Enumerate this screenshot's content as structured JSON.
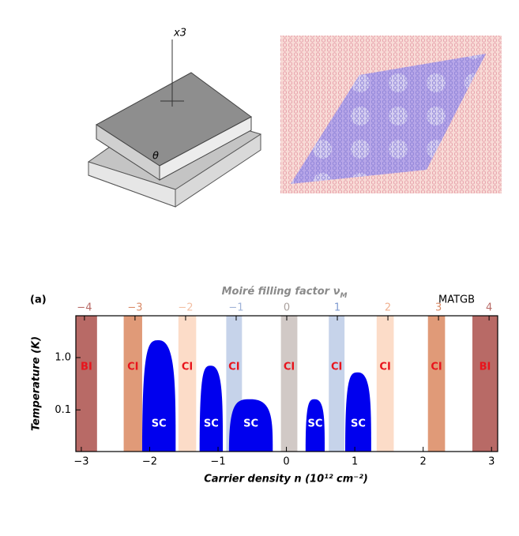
{
  "figure": {
    "axis_label": "x3",
    "angle_label": "θ"
  },
  "chart_data": {
    "type": "phase",
    "panel_label": "(a)",
    "corner_label": "MATGB",
    "top_axis_label": "Moiré filling factor ν",
    "top_axis_label_sub": "M",
    "x_label": "Carrier density n (10¹² cm⁻²)",
    "y_label": "Temperature (K)",
    "xlim": [
      -3.08,
      3.09
    ],
    "xticks": [
      {
        "value": -3,
        "label": "−3"
      },
      {
        "value": -2,
        "label": "−2"
      },
      {
        "value": -1,
        "label": "−1"
      },
      0,
      1,
      2,
      3
    ],
    "x2lim": [
      -4.17,
      4.17
    ],
    "x2ticks": [
      {
        "value": -4,
        "label": "−4"
      },
      {
        "value": -3,
        "label": "−3"
      },
      {
        "value": -2,
        "label": "−2"
      },
      {
        "value": -1,
        "label": "−1"
      },
      0,
      1,
      2,
      3,
      4
    ],
    "x2tick_colors": [
      "#b86a66",
      "#d98a66",
      "#f3bfa3",
      "#9fb3d8",
      "#a9a09c",
      "#7f9bd0",
      "#f0b08f",
      "#d98a66",
      "#b86a66"
    ],
    "ylim": [
      0.016,
      6.3
    ],
    "log_y": true,
    "yticks": [
      {
        "value": 1,
        "label": "1.0"
      },
      0.1
    ],
    "label_color": "#e8141c",
    "bands": [
      {
        "name": "BI",
        "range": [
          -3.08,
          -2.77
        ],
        "color": "#b86a66"
      },
      {
        "name": "CI",
        "range": [
          -2.38,
          -2.11
        ],
        "color": "#e09a78"
      },
      {
        "name": "CI",
        "range": [
          -1.58,
          -1.32
        ],
        "color": "#fcdcc8"
      },
      {
        "name": "CI",
        "range": [
          -0.88,
          -0.65
        ],
        "color": "#c6d3ea"
      },
      {
        "name": "CI",
        "range": [
          -0.08,
          0.16
        ],
        "color": "#d1c9c6"
      },
      {
        "name": "CI",
        "range": [
          0.62,
          0.85
        ],
        "color": "#c6d3ea"
      },
      {
        "name": "CI",
        "range": [
          1.32,
          1.57
        ],
        "color": "#fcdcc8"
      },
      {
        "name": "CI",
        "range": [
          2.07,
          2.32
        ],
        "color": "#e09a78"
      },
      {
        "name": "BI",
        "range": [
          2.72,
          3.09
        ],
        "color": "#b86a66"
      }
    ],
    "domes_color": "#0000ee",
    "domes": [
      {
        "name": "SC",
        "range": [
          -2.11,
          -1.62
        ],
        "peak": 2.15
      },
      {
        "name": "SC",
        "range": [
          -1.27,
          -0.93
        ],
        "peak": 0.7
      },
      {
        "name": "SC",
        "range": [
          -0.84,
          -0.2
        ],
        "peak": 0.16
      },
      {
        "name": "SC",
        "range": [
          0.28,
          0.56
        ],
        "peak": 0.16
      },
      {
        "name": "SC",
        "range": [
          0.86,
          1.24
        ],
        "peak": 0.52
      }
    ]
  }
}
